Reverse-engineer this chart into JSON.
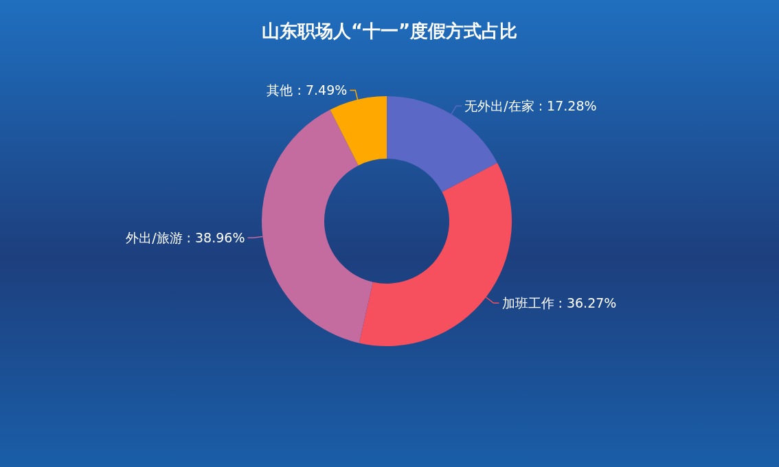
{
  "chart_data": {
    "type": "donut",
    "title": "山东职场人“十一”度假方式占比",
    "categories": [
      "无外出/在家",
      "加班工作",
      "外出/旅游",
      "其他"
    ],
    "values": [
      17.28,
      36.27,
      38.96,
      7.49
    ],
    "colors": [
      "#5b68c6",
      "#f6505e",
      "#c46c9f",
      "#ffa800"
    ],
    "value_labels": [
      ": 17.28%",
      ": 36.27%",
      ": 38.96%",
      ": 7.49%"
    ]
  }
}
